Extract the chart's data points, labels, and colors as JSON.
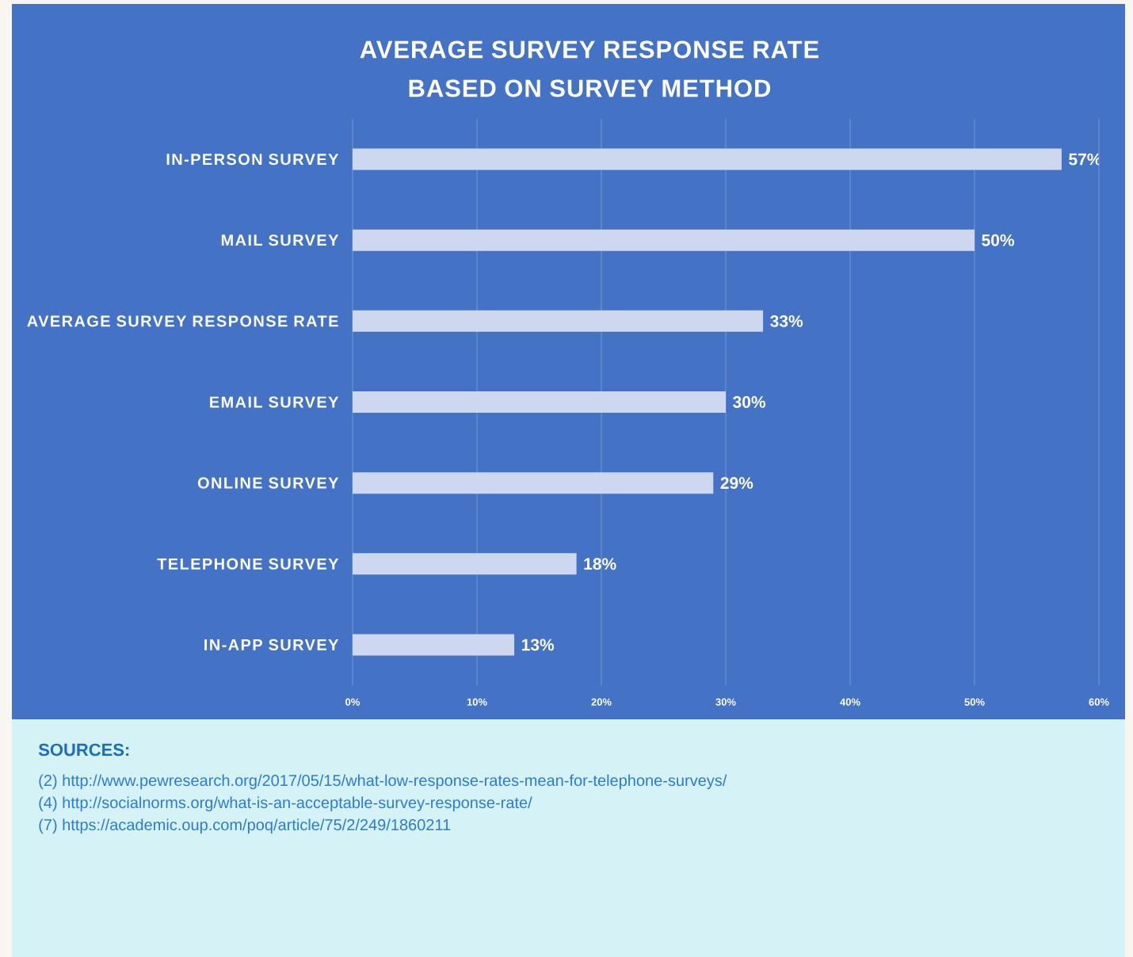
{
  "chart_data": {
    "type": "bar",
    "orientation": "horizontal",
    "title": "AVERAGE SURVEY RESPONSE RATE BASED ON SURVEY METHOD",
    "categories": [
      "IN-PERSON SURVEY",
      "MAIL SURVEY",
      "AVERAGE SURVEY RESPONSE RATE",
      "EMAIL SURVEY",
      "ONLINE SURVEY",
      "TELEPHONE SURVEY",
      "IN-APP SURVEY"
    ],
    "values": [
      57,
      50,
      33,
      30,
      29,
      18,
      13
    ],
    "value_labels": [
      "57%",
      "50%",
      "33%",
      "30%",
      "29%",
      "18%",
      "13%"
    ],
    "color": "#cdd8f0",
    "xlim": [
      0,
      60
    ],
    "xticks": [
      {
        "value": 0,
        "label": "0%"
      },
      {
        "value": 10,
        "label": "10%"
      },
      {
        "value": 20,
        "label": "20%"
      },
      {
        "value": 30,
        "label": "30%"
      },
      {
        "value": 40,
        "label": "40%"
      },
      {
        "value": 50,
        "label": "50%"
      },
      {
        "value": 60,
        "label": "60%"
      }
    ],
    "grid": "x",
    "annotations": [
      "SOURCES:",
      "(2) http://www.pewresearch.org/2017/05/15/what-low-response-rates-mean-for-telephone-surveys/",
      "(4) http://socialnorms.org/what-is-an-acceptable-survey-response-rate/",
      "(7) https://academic.oup.com/poq/article/75/2/249/1860211"
    ]
  }
}
